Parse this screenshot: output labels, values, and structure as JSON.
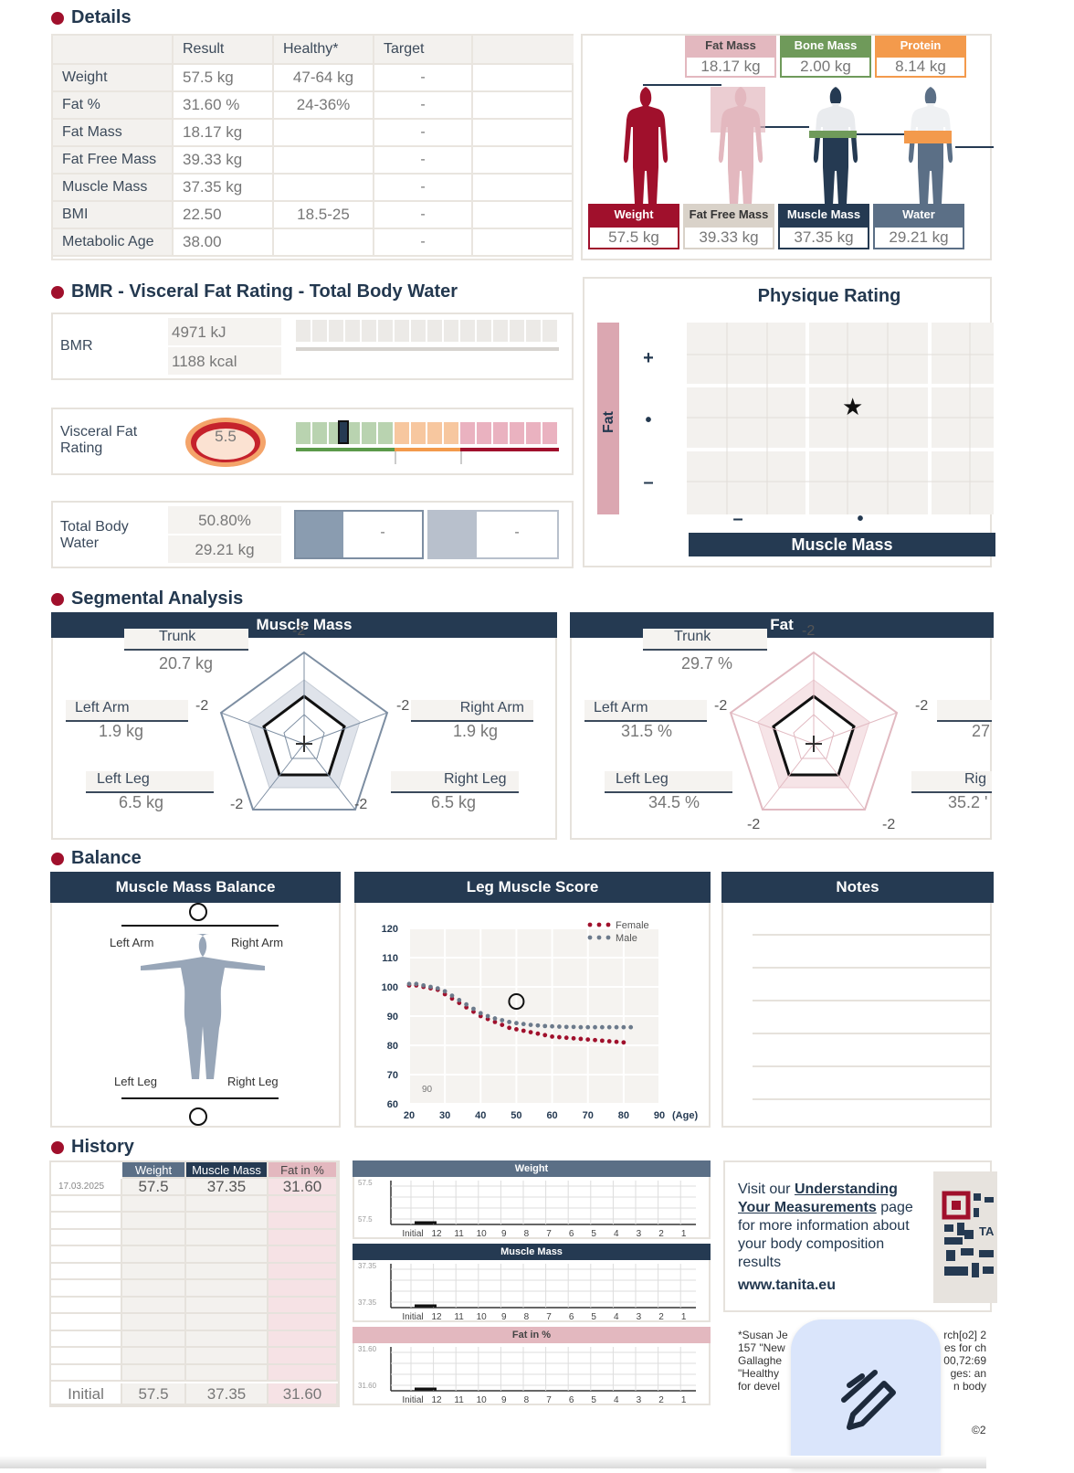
{
  "details": {
    "title": "Details",
    "headers": [
      "Result",
      "Healthy*",
      "Target"
    ],
    "rows": [
      {
        "label": "Weight",
        "result": "57.5 kg",
        "healthy": "47-64 kg",
        "target": "-"
      },
      {
        "label": "Fat %",
        "result": "31.60 %",
        "healthy": "24-36%",
        "target": "-"
      },
      {
        "label": "Fat Mass",
        "result": "18.17 kg",
        "healthy": "",
        "target": "-"
      },
      {
        "label": "Fat Free Mass",
        "result": "39.33 kg",
        "healthy": "",
        "target": "-"
      },
      {
        "label": "Muscle Mass",
        "result": "37.35 kg",
        "healthy": "",
        "target": "-"
      },
      {
        "label": "BMI",
        "result": "22.50",
        "healthy": "18.5-25",
        "target": "-"
      },
      {
        "label": "Metabolic Age",
        "result": "38.00",
        "healthy": "",
        "target": "-"
      }
    ]
  },
  "composition": {
    "top": [
      {
        "label": "Fat Mass",
        "value": "18.17 kg",
        "color": "#e3b8bf",
        "text": "#444"
      },
      {
        "label": "Bone Mass",
        "value": "2.00 kg",
        "color": "#6f9a5a",
        "text": "#fff"
      },
      {
        "label": "Protein",
        "value": "8.14 kg",
        "color": "#f39a4c",
        "text": "#fff"
      }
    ],
    "bottom": [
      {
        "label": "Weight",
        "value": "57.5 kg",
        "color": "#a0102c"
      },
      {
        "label": "Fat Free Mass",
        "value": "39.33 kg",
        "color": "#d9d2c9"
      },
      {
        "label": "Muscle Mass",
        "value": "37.35 kg",
        "color": "#253a52"
      },
      {
        "label": "Water",
        "value": "29.21 kg",
        "color": "#5b6f86"
      }
    ]
  },
  "bmr_section": {
    "title": "BMR - Visceral Fat Rating - Total Body Water",
    "bmr_label": "BMR",
    "bmr_kj": "4971 kJ",
    "bmr_kcal": "1188 kcal",
    "visceral_label": "Visceral Fat Rating",
    "visceral_value": "5.5",
    "visceral_level": 0.16,
    "water_label": "Total Body Water",
    "water_percent": "50.80%",
    "water_kg": "29.21 kg",
    "water_target_a": "-",
    "water_target_b": "-"
  },
  "physique": {
    "title": "Physique Rating",
    "fat_axis": "Fat",
    "muscle_axis": "Muscle Mass",
    "row_marks": [
      "+",
      "•",
      "–"
    ],
    "col_marks": [
      "–",
      "•"
    ],
    "star": "★"
  },
  "segmental": {
    "title": "Segmental Analysis",
    "muscle_title": "Muscle Mass",
    "fat_title": "Fat",
    "axis_mark": "-2",
    "muscle": {
      "trunk": {
        "label": "Trunk",
        "value": "20.7 kg"
      },
      "left_arm": {
        "label": "Left Arm",
        "value": "1.9 kg"
      },
      "right_arm": {
        "label": "Right Arm",
        "value": "1.9 kg"
      },
      "left_leg": {
        "label": "Left Leg",
        "value": "6.5 kg"
      },
      "right_leg": {
        "label": "Right Leg",
        "value": "6.5 kg"
      }
    },
    "fat": {
      "trunk": {
        "label": "Trunk",
        "value": "29.7 %"
      },
      "left_arm": {
        "label": "Left Arm",
        "value": "31.5 %"
      },
      "right_arm_value": "27",
      "left_leg": {
        "label": "Left Leg",
        "value": "34.5 %"
      },
      "right_leg_label": "Rig",
      "right_leg_value": "35.2 '"
    }
  },
  "balance": {
    "title": "Balance",
    "muscle_balance_title": "Muscle Mass Balance",
    "left_arm": "Left Arm",
    "right_arm": "Right Arm",
    "left_leg": "Left Leg",
    "right_leg": "Right Leg",
    "leg_score_title": "Leg Muscle Score",
    "notes_title": "Notes",
    "legend_female": "Female",
    "legend_male": "Male",
    "score_note": "90",
    "x_unit": "(Age)"
  },
  "chart_data": {
    "type": "scatter",
    "title": "Leg Muscle Score",
    "xlabel": "(Age)",
    "ylabel": "",
    "xlim": [
      20,
      90
    ],
    "ylim": [
      60,
      120
    ],
    "x_ticks": [
      20,
      30,
      40,
      50,
      60,
      70,
      80,
      90
    ],
    "y_ticks": [
      60,
      70,
      80,
      90,
      100,
      110,
      120
    ],
    "series": [
      {
        "name": "Female",
        "color": "#a0102c",
        "x": [
          20,
          22,
          24,
          26,
          28,
          30,
          32,
          34,
          36,
          38,
          40,
          42,
          44,
          46,
          48,
          50,
          52,
          54,
          56,
          58,
          60,
          62,
          64,
          66,
          68,
          70,
          72,
          74,
          76,
          78,
          80
        ],
        "y": [
          100.5,
          100.5,
          100,
          99.5,
          99,
          97.5,
          96,
          94.5,
          93,
          91.5,
          90,
          89,
          88,
          87,
          86,
          85.5,
          85,
          84.5,
          84,
          83.5,
          83,
          82.8,
          82.6,
          82.4,
          82.2,
          82,
          81.8,
          81.6,
          81.4,
          81.2,
          81
        ]
      },
      {
        "name": "Male",
        "color": "#6c7a8b",
        "x": [
          20,
          22,
          24,
          26,
          28,
          30,
          32,
          34,
          36,
          38,
          40,
          42,
          44,
          46,
          48,
          50,
          52,
          54,
          56,
          58,
          60,
          62,
          64,
          66,
          68,
          70,
          72,
          74,
          76,
          78,
          80,
          82
        ],
        "y": [
          101,
          101,
          100.5,
          100,
          99.5,
          98.5,
          97,
          95.5,
          94,
          92.5,
          91,
          90,
          89.2,
          88.6,
          88,
          87.6,
          87.3,
          87,
          86.8,
          86.6,
          86.5,
          86.4,
          86.3,
          86.3,
          86.2,
          86.2,
          86.2,
          86.2,
          86.2,
          86.2,
          86.2,
          86.2
        ]
      },
      {
        "name": "",
        "marker": "circle",
        "x": [
          50
        ],
        "y": [
          95
        ]
      }
    ]
  },
  "history": {
    "title": "History",
    "headers": [
      "Weight",
      "Muscle Mass",
      "Fat in %"
    ],
    "first_row": {
      "date": "17.03.2025",
      "weight": "57.5",
      "muscle": "37.35",
      "fat": "31.60"
    },
    "initial_row": {
      "label": "Initial",
      "weight": "57.5",
      "muscle": "37.35",
      "fat": "31.60"
    },
    "mini_charts": [
      {
        "title": "Weight",
        "ylabel_top": "57.5",
        "ylabel_bottom": "57.5",
        "head_color": "#5b6f86"
      },
      {
        "title": "Muscle Mass",
        "ylabel_top": "37.35",
        "ylabel_bottom": "37.35",
        "head_color": "#253a52"
      },
      {
        "title": "Fat in %",
        "ylabel_top": "31.60",
        "ylabel_bottom": "31.60",
        "head_color": "#e3b8bf"
      }
    ],
    "x_labels": [
      "Initial",
      "12",
      "11",
      "10",
      "9",
      "8",
      "7",
      "6",
      "5",
      "4",
      "3",
      "2",
      "1"
    ]
  },
  "info": {
    "visit_text": "Visit our",
    "link_text": "Understanding Your Measurements",
    "rest_text": "page for more information about your body composition results",
    "url": "www.tanita.eu",
    "qr_fragment": "TA",
    "ref_fragment": "rch[o2] 2",
    "footnote_lines": [
      "*Susan Je",
      "157 \"New",
      "Gallaghe",
      "\"Healthy",
      "for devel"
    ],
    "footnote_right": [
      "es for ch",
      "00,72:69",
      "ges: an",
      "n body"
    ],
    "copyright": "©2"
  }
}
